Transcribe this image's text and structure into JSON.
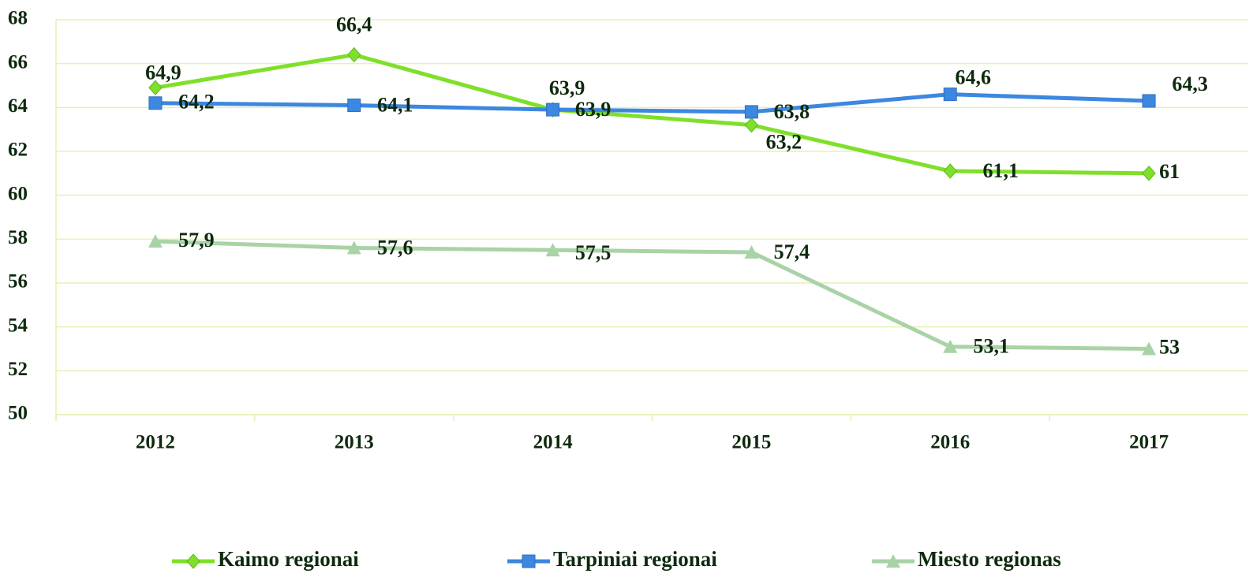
{
  "chart_data": {
    "type": "line",
    "categories": [
      "2012",
      "2013",
      "2014",
      "2015",
      "2016",
      "2017"
    ],
    "series": [
      {
        "name": "Kaimo regionai",
        "color": "#7ee02a",
        "marker": "diamond",
        "values": [
          64.9,
          66.4,
          63.9,
          63.2,
          61.1,
          61
        ],
        "value_labels": [
          "64,9",
          "66,4",
          "63,9",
          "63,2",
          "61,1",
          "61"
        ]
      },
      {
        "name": "Tarpiniai regionai",
        "color": "#3c87e0",
        "marker": "square",
        "values": [
          64.2,
          64.1,
          63.9,
          63.8,
          64.6,
          64.3
        ],
        "value_labels": [
          "64,2",
          "64,1",
          "63,9",
          "63,8",
          "64,6",
          "64,3"
        ]
      },
      {
        "name": "Miesto regionas",
        "color": "#a9d3a6",
        "marker": "triangle",
        "values": [
          57.9,
          57.6,
          57.5,
          57.4,
          53.1,
          53
        ],
        "value_labels": [
          "57,9",
          "57,6",
          "57,5",
          "57,4",
          "53,1",
          "53"
        ]
      }
    ],
    "ylim": [
      50,
      68
    ],
    "yticks": [
      50,
      52,
      54,
      56,
      58,
      60,
      62,
      64,
      66,
      68
    ],
    "grid": true,
    "legend": "bottom"
  }
}
